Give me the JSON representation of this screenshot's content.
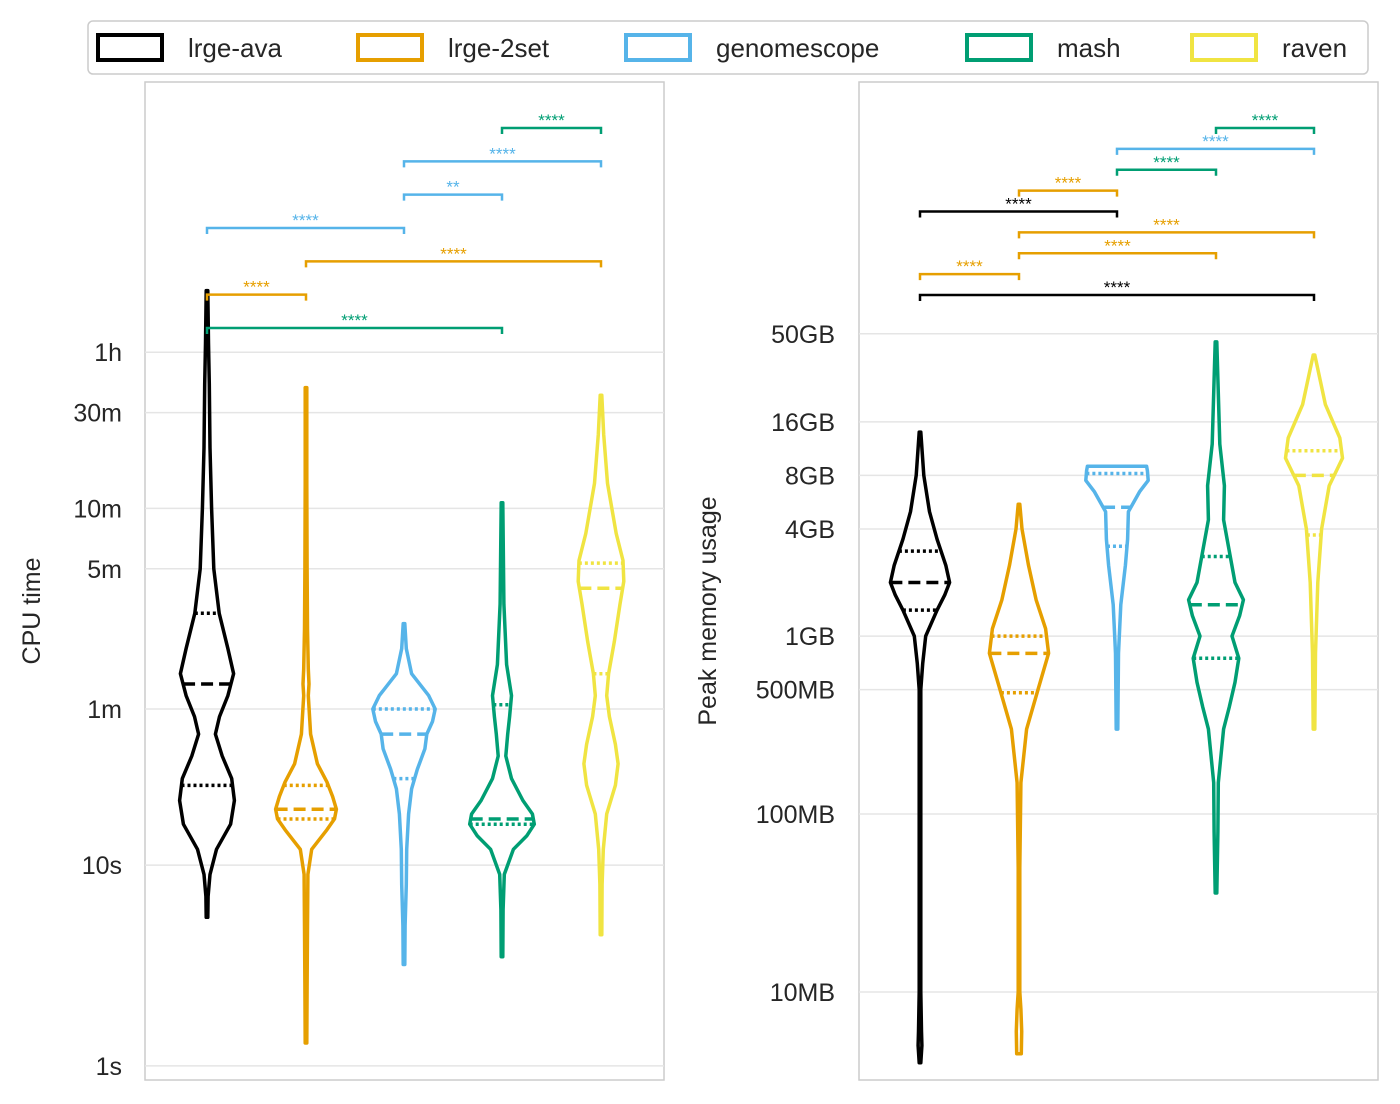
{
  "legend": {
    "entries": [
      {
        "name": "lrge-ava",
        "color": "#000000"
      },
      {
        "name": "lrge-2set",
        "color": "#E69F00"
      },
      {
        "name": "genomescope",
        "color": "#56B4E9"
      },
      {
        "name": "mash",
        "color": "#009E73"
      },
      {
        "name": "raven",
        "color": "#F0E442"
      }
    ]
  },
  "chart_data": [
    {
      "type": "violin",
      "ylabel": "CPU time",
      "yscale": "log",
      "units": "seconds",
      "yticks": [
        {
          "value": 1,
          "label": "1s"
        },
        {
          "value": 10,
          "label": "10s"
        },
        {
          "value": 60,
          "label": "1m"
        },
        {
          "value": 300,
          "label": "5m"
        },
        {
          "value": 600,
          "label": "10m"
        },
        {
          "value": 1800,
          "label": "30m"
        },
        {
          "value": 3600,
          "label": "1h"
        }
      ],
      "ylim": [
        0.85,
        80000
      ],
      "categories": [
        "lrge-ava",
        "lrge-2set",
        "genomescope",
        "mash",
        "raven"
      ],
      "series": [
        {
          "name": "lrge-ava",
          "min": 5.5,
          "max": 7300,
          "q1": 25,
          "median": 80,
          "q3": 180,
          "density": [
            [
              5.5,
              0.02
            ],
            [
              7,
              0.03
            ],
            [
              9,
              0.08
            ],
            [
              12,
              0.25
            ],
            [
              16,
              0.62
            ],
            [
              21,
              0.72
            ],
            [
              27,
              0.65
            ],
            [
              35,
              0.4
            ],
            [
              45,
              0.22
            ],
            [
              55,
              0.33
            ],
            [
              70,
              0.55
            ],
            [
              90,
              0.7
            ],
            [
              120,
              0.55
            ],
            [
              180,
              0.32
            ],
            [
              300,
              0.18
            ],
            [
              600,
              0.12
            ],
            [
              1200,
              0.08
            ],
            [
              2500,
              0.06
            ],
            [
              4000,
              0.04
            ],
            [
              7300,
              0.02
            ]
          ]
        },
        {
          "name": "lrge-2set",
          "min": 1.3,
          "max": 2400,
          "q1": 17,
          "median": 19,
          "q3": 25,
          "density": [
            [
              1.3,
              0.02
            ],
            [
              2.5,
              0.03
            ],
            [
              5,
              0.04
            ],
            [
              9,
              0.05
            ],
            [
              12,
              0.15
            ],
            [
              15,
              0.55
            ],
            [
              17,
              0.75
            ],
            [
              19,
              0.8
            ],
            [
              22,
              0.7
            ],
            [
              26,
              0.55
            ],
            [
              32,
              0.3
            ],
            [
              45,
              0.12
            ],
            [
              70,
              0.06
            ],
            [
              80,
              0.08
            ],
            [
              95,
              0.06
            ],
            [
              150,
              0.04
            ],
            [
              300,
              0.03
            ],
            [
              800,
              0.02
            ],
            [
              2400,
              0.02
            ]
          ]
        },
        {
          "name": "genomescope",
          "min": 3.2,
          "max": 160,
          "q1": 27,
          "median": 45,
          "q3": 60,
          "density": [
            [
              3.2,
              0.02
            ],
            [
              5,
              0.03
            ],
            [
              8,
              0.06
            ],
            [
              12,
              0.07
            ],
            [
              18,
              0.12
            ],
            [
              24,
              0.2
            ],
            [
              30,
              0.35
            ],
            [
              38,
              0.55
            ],
            [
              45,
              0.6
            ],
            [
              52,
              0.75
            ],
            [
              60,
              0.82
            ],
            [
              70,
              0.65
            ],
            [
              90,
              0.2
            ],
            [
              120,
              0.06
            ],
            [
              160,
              0.02
            ]
          ]
        },
        {
          "name": "mash",
          "min": 3.5,
          "max": 640,
          "q1": 16,
          "median": 17,
          "q3": 63,
          "density": [
            [
              3.5,
              0.02
            ],
            [
              6,
              0.03
            ],
            [
              9,
              0.06
            ],
            [
              12,
              0.3
            ],
            [
              14,
              0.65
            ],
            [
              16,
              0.85
            ],
            [
              18,
              0.8
            ],
            [
              21,
              0.55
            ],
            [
              27,
              0.25
            ],
            [
              35,
              0.1
            ],
            [
              45,
              0.15
            ],
            [
              55,
              0.2
            ],
            [
              70,
              0.25
            ],
            [
              100,
              0.12
            ],
            [
              200,
              0.05
            ],
            [
              640,
              0.02
            ]
          ]
        },
        {
          "name": "raven",
          "min": 4.5,
          "max": 2200,
          "q1": 90,
          "median": 240,
          "q3": 320,
          "density": [
            [
              4.5,
              0.02
            ],
            [
              8,
              0.03
            ],
            [
              12,
              0.06
            ],
            [
              18,
              0.15
            ],
            [
              25,
              0.38
            ],
            [
              32,
              0.45
            ],
            [
              40,
              0.38
            ],
            [
              55,
              0.22
            ],
            [
              70,
              0.15
            ],
            [
              90,
              0.2
            ],
            [
              130,
              0.35
            ],
            [
              200,
              0.5
            ],
            [
              260,
              0.6
            ],
            [
              330,
              0.58
            ],
            [
              450,
              0.4
            ],
            [
              800,
              0.17
            ],
            [
              1400,
              0.07
            ],
            [
              2200,
              0.02
            ]
          ]
        }
      ],
      "significance": [
        {
          "from": "lrge-ava",
          "to": "mash",
          "label": "****",
          "color": "#009E73"
        },
        {
          "from": "lrge-ava",
          "to": "lrge-2set",
          "label": "****",
          "color": "#E69F00"
        },
        {
          "from": "lrge-2set",
          "to": "raven",
          "label": "****",
          "color": "#E69F00"
        },
        {
          "from": "lrge-ava",
          "to": "genomescope",
          "label": "****",
          "color": "#56B4E9"
        },
        {
          "from": "genomescope",
          "to": "mash",
          "label": "**",
          "color": "#56B4E9"
        },
        {
          "from": "genomescope",
          "to": "raven",
          "label": "****",
          "color": "#56B4E9"
        },
        {
          "from": "mash",
          "to": "raven",
          "label": "****",
          "color": "#009E73"
        }
      ]
    },
    {
      "type": "violin",
      "ylabel": "Peak memory usage",
      "yscale": "log",
      "units": "MB",
      "yticks": [
        {
          "value": 10,
          "label": "10MB"
        },
        {
          "value": 100,
          "label": "100MB"
        },
        {
          "value": 500,
          "label": "500MB"
        },
        {
          "value": 1000,
          "label": "1GB"
        },
        {
          "value": 4000,
          "label": "4GB"
        },
        {
          "value": 8000,
          "label": "8GB"
        },
        {
          "value": 16000,
          "label": "16GB"
        },
        {
          "value": 50000,
          "label": "50GB"
        }
      ],
      "ylim": [
        3.2,
        1300000
      ],
      "categories": [
        "lrge-ava",
        "lrge-2set",
        "genomescope",
        "mash",
        "raven"
      ],
      "series": [
        {
          "name": "lrge-ava",
          "min": 4,
          "max": 14000,
          "q1": 1400,
          "median": 2000,
          "q3": 3000,
          "density": [
            [
              4,
              0.02
            ],
            [
              5,
              0.05
            ],
            [
              6,
              0.04
            ],
            [
              10,
              0.02
            ],
            [
              100,
              0.02
            ],
            [
              500,
              0.02
            ],
            [
              700,
              0.07
            ],
            [
              1000,
              0.15
            ],
            [
              1400,
              0.45
            ],
            [
              1700,
              0.65
            ],
            [
              2000,
              0.78
            ],
            [
              2500,
              0.68
            ],
            [
              3500,
              0.45
            ],
            [
              5000,
              0.25
            ],
            [
              8000,
              0.1
            ],
            [
              14000,
              0.02
            ]
          ]
        },
        {
          "name": "lrge-2set",
          "min": 4.5,
          "max": 5500,
          "q1": 480,
          "median": 800,
          "q3": 1000,
          "density": [
            [
              4.5,
              0.06
            ],
            [
              6,
              0.07
            ],
            [
              8,
              0.05
            ],
            [
              10,
              0.02
            ],
            [
              50,
              0.02
            ],
            [
              150,
              0.05
            ],
            [
              300,
              0.2
            ],
            [
              500,
              0.5
            ],
            [
              800,
              0.78
            ],
            [
              1100,
              0.7
            ],
            [
              1600,
              0.45
            ],
            [
              2500,
              0.25
            ],
            [
              4000,
              0.08
            ],
            [
              5500,
              0.02
            ]
          ]
        },
        {
          "name": "genomescope",
          "min": 300,
          "max": 9000,
          "q1": 3200,
          "median": 5300,
          "q3": 8200,
          "density": [
            [
              300,
              0.02
            ],
            [
              800,
              0.04
            ],
            [
              1500,
              0.1
            ],
            [
              2500,
              0.22
            ],
            [
              3500,
              0.28
            ],
            [
              5000,
              0.3
            ],
            [
              6500,
              0.6
            ],
            [
              7500,
              0.82
            ],
            [
              8500,
              0.8
            ],
            [
              9000,
              0.78
            ]
          ]
        },
        {
          "name": "mash",
          "min": 36,
          "max": 45000,
          "q1": 750,
          "median": 1500,
          "q3": 2800,
          "density": [
            [
              36,
              0.02
            ],
            [
              80,
              0.05
            ],
            [
              150,
              0.06
            ],
            [
              300,
              0.2
            ],
            [
              400,
              0.35
            ],
            [
              550,
              0.5
            ],
            [
              750,
              0.6
            ],
            [
              1000,
              0.42
            ],
            [
              1300,
              0.62
            ],
            [
              1600,
              0.72
            ],
            [
              2000,
              0.5
            ],
            [
              3000,
              0.35
            ],
            [
              4500,
              0.2
            ],
            [
              7000,
              0.22
            ],
            [
              12000,
              0.1
            ],
            [
              45000,
              0.02
            ]
          ]
        },
        {
          "name": "raven",
          "min": 300,
          "max": 38000,
          "q1": 3700,
          "median": 8000,
          "q3": 11000,
          "density": [
            [
              300,
              0.02
            ],
            [
              800,
              0.04
            ],
            [
              2000,
              0.1
            ],
            [
              4000,
              0.2
            ],
            [
              7000,
              0.4
            ],
            [
              10000,
              0.75
            ],
            [
              13000,
              0.68
            ],
            [
              20000,
              0.3
            ],
            [
              38000,
              0.02
            ]
          ]
        }
      ],
      "significance": [
        {
          "from": "lrge-ava",
          "to": "raven",
          "label": "****",
          "color": "#000000"
        },
        {
          "from": "lrge-ava",
          "to": "lrge-2set",
          "label": "****",
          "color": "#E69F00"
        },
        {
          "from": "lrge-2set",
          "to": "mash",
          "label": "****",
          "color": "#E69F00"
        },
        {
          "from": "lrge-2set",
          "to": "raven",
          "label": "****",
          "color": "#E69F00"
        },
        {
          "from": "lrge-ava",
          "to": "genomescope",
          "label": "****",
          "color": "#000000"
        },
        {
          "from": "lrge-2set",
          "to": "genomescope",
          "label": "****",
          "color": "#E69F00"
        },
        {
          "from": "genomescope",
          "to": "mash",
          "label": "****",
          "color": "#009E73"
        },
        {
          "from": "genomescope",
          "to": "raven",
          "label": "****",
          "color": "#56B4E9"
        },
        {
          "from": "mash",
          "to": "raven",
          "label": "****",
          "color": "#009E73"
        }
      ]
    }
  ]
}
